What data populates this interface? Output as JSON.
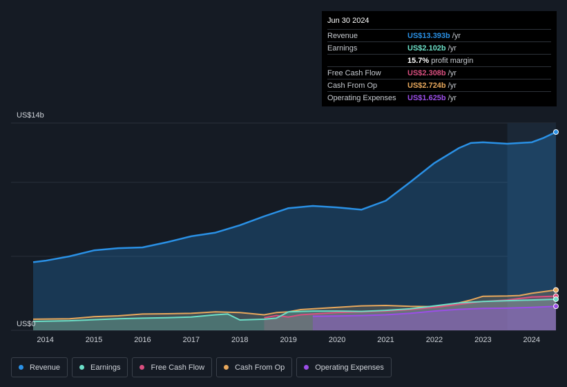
{
  "colors": {
    "revenue": "#2a91e6",
    "earnings": "#6ce0c8",
    "free_cash_flow": "#d94f7f",
    "cash_from_op": "#e8a85c",
    "operating_expenses": "#9b4ee8",
    "background": "#151b24"
  },
  "tooltip": {
    "date": "Jun 30 2024",
    "rows": [
      {
        "label": "Revenue",
        "value": "US$13.393b",
        "unit": "/yr",
        "color": "#2a91e6"
      },
      {
        "label": "Earnings",
        "value": "US$2.102b",
        "unit": "/yr",
        "color": "#6ce0c8"
      },
      {
        "label": "",
        "value": "15.7%",
        "unit": "profit margin",
        "color": "#ffffff"
      },
      {
        "label": "Free Cash Flow",
        "value": "US$2.308b",
        "unit": "/yr",
        "color": "#d94f7f"
      },
      {
        "label": "Cash From Op",
        "value": "US$2.724b",
        "unit": "/yr",
        "color": "#e8a85c"
      },
      {
        "label": "Operating Expenses",
        "value": "US$1.625b",
        "unit": "/yr",
        "color": "#9b4ee8"
      }
    ]
  },
  "legend": [
    {
      "label": "Revenue",
      "icon": "revenue-dot-icon",
      "color": "#2a91e6"
    },
    {
      "label": "Earnings",
      "icon": "earnings-dot-icon",
      "color": "#6ce0c8"
    },
    {
      "label": "Free Cash Flow",
      "icon": "free-cash-flow-dot-icon",
      "color": "#d94f7f"
    },
    {
      "label": "Cash From Op",
      "icon": "cash-from-op-dot-icon",
      "color": "#e8a85c"
    },
    {
      "label": "Operating Expenses",
      "icon": "operating-expenses-dot-icon",
      "color": "#9b4ee8"
    }
  ],
  "chart_data": {
    "type": "area",
    "title": "",
    "xlabel": "",
    "ylabel": "",
    "ylim": [
      0,
      14
    ],
    "xlim": [
      2013.75,
      2024.5
    ],
    "y_tick_labels": [
      "US$14b",
      "US$0"
    ],
    "y_tick_values": [
      14,
      0
    ],
    "x_tick_labels": [
      "2014",
      "2015",
      "2016",
      "2017",
      "2018",
      "2019",
      "2020",
      "2021",
      "2022",
      "2023",
      "2024"
    ],
    "x_tick_values": [
      2014,
      2015,
      2016,
      2017,
      2018,
      2019,
      2020,
      2021,
      2022,
      2023,
      2024
    ],
    "highlight_range": [
      2023.5,
      2024.5
    ],
    "series": [
      {
        "name": "Revenue",
        "key": "revenue",
        "points": [
          [
            2013.75,
            4.6
          ],
          [
            2014.0,
            4.7
          ],
          [
            2014.5,
            5.0
          ],
          [
            2015.0,
            5.4
          ],
          [
            2015.5,
            5.55
          ],
          [
            2016.0,
            5.6
          ],
          [
            2016.5,
            5.95
          ],
          [
            2017.0,
            6.35
          ],
          [
            2017.5,
            6.6
          ],
          [
            2018.0,
            7.1
          ],
          [
            2018.5,
            7.7
          ],
          [
            2019.0,
            8.25
          ],
          [
            2019.5,
            8.4
          ],
          [
            2020.0,
            8.3
          ],
          [
            2020.5,
            8.15
          ],
          [
            2021.0,
            8.75
          ],
          [
            2021.5,
            10.0
          ],
          [
            2022.0,
            11.3
          ],
          [
            2022.5,
            12.3
          ],
          [
            2022.75,
            12.65
          ],
          [
            2023.0,
            12.7
          ],
          [
            2023.5,
            12.6
          ],
          [
            2024.0,
            12.7
          ],
          [
            2024.25,
            13.0
          ],
          [
            2024.5,
            13.393
          ]
        ]
      },
      {
        "name": "Earnings",
        "key": "earnings",
        "points": [
          [
            2013.75,
            0.6
          ],
          [
            2014.5,
            0.65
          ],
          [
            2015.0,
            0.72
          ],
          [
            2015.5,
            0.78
          ],
          [
            2016.0,
            0.82
          ],
          [
            2016.5,
            0.85
          ],
          [
            2017.0,
            0.9
          ],
          [
            2017.5,
            1.05
          ],
          [
            2017.75,
            1.1
          ],
          [
            2018.0,
            0.7
          ],
          [
            2018.5,
            0.75
          ],
          [
            2018.75,
            0.82
          ],
          [
            2019.0,
            1.25
          ],
          [
            2019.5,
            1.3
          ],
          [
            2020.0,
            1.3
          ],
          [
            2020.5,
            1.28
          ],
          [
            2021.0,
            1.35
          ],
          [
            2021.5,
            1.45
          ],
          [
            2022.0,
            1.65
          ],
          [
            2022.5,
            1.85
          ],
          [
            2023.0,
            1.95
          ],
          [
            2023.5,
            2.0
          ],
          [
            2024.0,
            2.05
          ],
          [
            2024.5,
            2.102
          ]
        ]
      },
      {
        "name": "Free Cash Flow",
        "key": "free_cash_flow",
        "points": [
          [
            2018.5,
            0.85
          ],
          [
            2018.75,
            1.0
          ],
          [
            2019.0,
            0.9
          ],
          [
            2019.25,
            1.05
          ],
          [
            2019.5,
            1.1
          ],
          [
            2020.0,
            1.2
          ],
          [
            2020.5,
            1.25
          ],
          [
            2021.0,
            1.3
          ],
          [
            2021.5,
            1.4
          ],
          [
            2022.0,
            1.55
          ],
          [
            2022.5,
            1.75
          ],
          [
            2023.0,
            1.95
          ],
          [
            2023.5,
            2.05
          ],
          [
            2024.0,
            2.25
          ],
          [
            2024.5,
            2.308
          ]
        ]
      },
      {
        "name": "Cash From Op",
        "key": "cash_from_op",
        "points": [
          [
            2013.75,
            0.75
          ],
          [
            2014.5,
            0.78
          ],
          [
            2015.0,
            0.92
          ],
          [
            2015.5,
            0.98
          ],
          [
            2016.0,
            1.1
          ],
          [
            2016.5,
            1.12
          ],
          [
            2017.0,
            1.15
          ],
          [
            2017.5,
            1.25
          ],
          [
            2018.0,
            1.2
          ],
          [
            2018.5,
            1.05
          ],
          [
            2018.75,
            1.2
          ],
          [
            2019.0,
            1.25
          ],
          [
            2019.25,
            1.4
          ],
          [
            2019.5,
            1.45
          ],
          [
            2020.0,
            1.55
          ],
          [
            2020.5,
            1.65
          ],
          [
            2021.0,
            1.68
          ],
          [
            2021.5,
            1.62
          ],
          [
            2022.0,
            1.6
          ],
          [
            2022.5,
            1.85
          ],
          [
            2022.75,
            2.05
          ],
          [
            2023.0,
            2.3
          ],
          [
            2023.5,
            2.32
          ],
          [
            2023.75,
            2.35
          ],
          [
            2024.0,
            2.5
          ],
          [
            2024.5,
            2.724
          ]
        ]
      },
      {
        "name": "Operating Expenses",
        "key": "operating_expenses",
        "points": [
          [
            2019.5,
            0.95
          ],
          [
            2020.0,
            0.97
          ],
          [
            2020.5,
            1.0
          ],
          [
            2021.0,
            1.05
          ],
          [
            2021.5,
            1.15
          ],
          [
            2022.0,
            1.3
          ],
          [
            2022.5,
            1.42
          ],
          [
            2023.0,
            1.48
          ],
          [
            2023.5,
            1.5
          ],
          [
            2024.0,
            1.55
          ],
          [
            2024.5,
            1.625
          ]
        ]
      }
    ]
  }
}
